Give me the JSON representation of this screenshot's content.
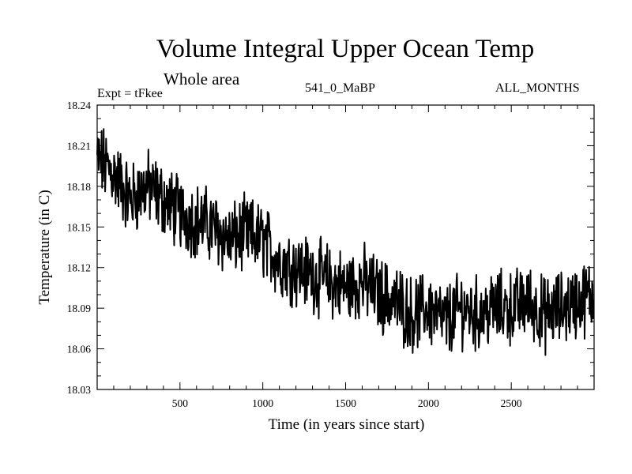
{
  "header": {
    "title": "Volume Integral Upper Ocean Temp",
    "subtitle": "Whole area",
    "experiment": "Expt = tFkee",
    "run": "541_0_MaBP",
    "months": "ALL_MONTHS"
  },
  "chart_data": {
    "type": "line",
    "title": "Volume Integral Upper Ocean Temp",
    "subtitle": "Whole area",
    "xlabel": "Time (in years since start)",
    "ylabel": "Temperature (in C)",
    "xlim": [
      0,
      3000
    ],
    "ylim": [
      18.03,
      18.24
    ],
    "xticks": [
      500,
      1000,
      1500,
      2000,
      2500
    ],
    "yticks": [
      18.03,
      18.06,
      18.09,
      18.12,
      18.15,
      18.18,
      18.21,
      18.24
    ],
    "ytick_labels": [
      "18.03",
      "18.06",
      "18.09",
      "18.12",
      "18.15",
      "18.18",
      "18.21",
      "18.24"
    ],
    "grid": false,
    "line_color": "#000000",
    "series": [
      {
        "x": [
          0,
          100,
          200,
          300,
          400,
          500,
          600,
          700,
          800,
          900,
          1000,
          1100,
          1200,
          1300,
          1400,
          1500,
          1600,
          1700,
          1800,
          1900,
          2000,
          2100,
          2200,
          2300,
          2400,
          2500,
          2600,
          2700,
          2800,
          2900,
          3000
        ],
        "values": [
          18.2,
          18.19,
          18.17,
          18.18,
          18.17,
          18.16,
          18.155,
          18.15,
          18.14,
          18.145,
          18.14,
          18.125,
          18.12,
          18.115,
          18.11,
          18.105,
          18.11,
          18.1,
          18.095,
          18.085,
          18.09,
          18.08,
          18.09,
          18.085,
          18.09,
          18.09,
          18.095,
          18.085,
          18.09,
          18.095,
          18.1
        ]
      }
    ]
  }
}
